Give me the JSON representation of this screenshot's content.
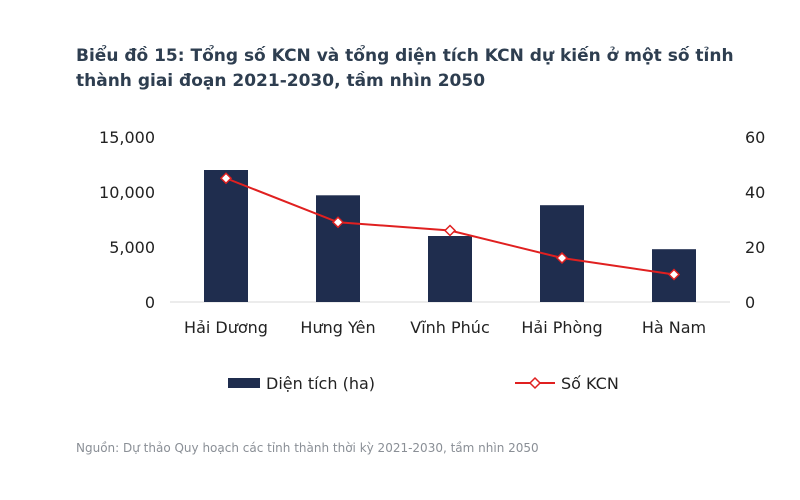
{
  "title": "Biểu đồ 15: Tổng số KCN và tổng diện tích KCN dự kiến ở một số tỉnh thành giai đoạn 2021-2030, tầm nhìn 2050",
  "source": "Nguồn: Dự thảo Quy hoạch các tỉnh thành thời kỳ 2021-2030, tầm nhìn 2050",
  "colors": {
    "bar": "#1f2d4e",
    "line": "#e02020",
    "title": "#2e3e50"
  },
  "chart_data": {
    "type": "bar",
    "categories": [
      "Hải Dương",
      "Hưng Yên",
      "Vĩnh Phúc",
      "Hải Phòng",
      "Hà Nam"
    ],
    "series": [
      {
        "name": "Diện tích (ha)",
        "type": "bar",
        "axis": "left",
        "values": [
          12000,
          9700,
          6000,
          8800,
          4800
        ]
      },
      {
        "name": "Số KCN",
        "type": "line",
        "axis": "right",
        "marker": "diamond",
        "values": [
          45,
          29,
          26,
          16,
          10
        ]
      }
    ],
    "y_left": {
      "ylim": [
        0,
        15000
      ],
      "ticks": [
        "0",
        "5,000",
        "10,000",
        "15,000"
      ],
      "tick_values": [
        0,
        5000,
        10000,
        15000
      ]
    },
    "y_right": {
      "ylim": [
        0,
        60
      ],
      "ticks": [
        "0",
        "20",
        "40",
        "60"
      ],
      "tick_values": [
        0,
        20,
        40,
        60
      ]
    },
    "grid": false,
    "legend_position": "bottom"
  }
}
